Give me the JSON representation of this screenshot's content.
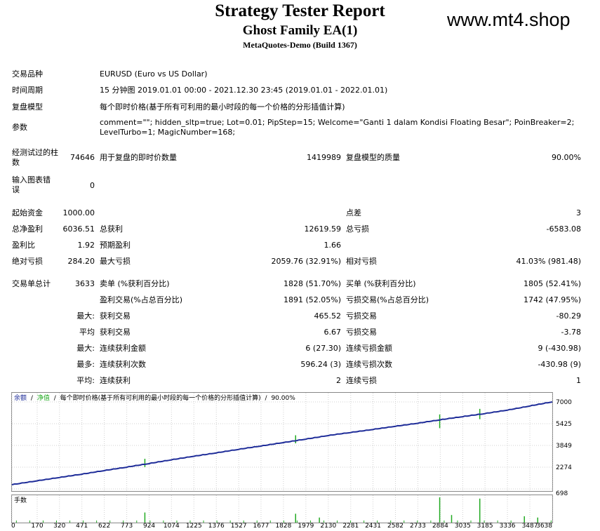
{
  "header": {
    "title": "Strategy Tester Report",
    "subtitle": "Ghost Family EA(1)",
    "build": "MetaQuotes-Demo (Build 1367)",
    "watermark": "www.mt4.shop"
  },
  "info": {
    "symbol_label": "交易品种",
    "symbol_value": "EURUSD (Euro vs US Dollar)",
    "period_label": "时间周期",
    "period_value": "15 分钟图 2019.01.01 00:00 - 2021.12.30 23:45 (2019.01.01 - 2022.01.01)",
    "model_label": "复盘模型",
    "model_value": "每个即时价格(基于所有可利用的最小时段的每一个价格的分形插值计算)",
    "params_label": "参数",
    "params_value": "comment=\"\"; hidden_sltp=true; Lot=0.01; PipStep=15; Welcome=\"Ganti 1 dalam Kondisi Floating Besar\"; PoinBreaker=2; LevelTurbo=1; MagicNumber=168;"
  },
  "stats": {
    "bars_label": "经测试过的柱数",
    "bars_value": "74646",
    "ticks_label": "用于复盘的即时价数量",
    "ticks_value": "1419989",
    "quality_label": "复盘模型的质量",
    "quality_value": "90.00%",
    "errors_label": "输入图表错误",
    "errors_value": "0",
    "deposit_label": "起始资金",
    "deposit_value": "1000.00",
    "spread_label": "点差",
    "spread_value": "3",
    "netprofit_label": "总净盈利",
    "netprofit_value": "6036.51",
    "grossprofit_label": "总获利",
    "grossprofit_value": "12619.59",
    "grossloss_label": "总亏损",
    "grossloss_value": "-6583.08",
    "pf_label": "盈利比",
    "pf_value": "1.92",
    "payoff_label": "预期盈利",
    "payoff_value": "1.66",
    "absdd_label": "绝对亏损",
    "absdd_value": "284.20",
    "maxdd_label": "最大亏损",
    "maxdd_value": "2059.76 (32.91%)",
    "reldd_label": "相对亏损",
    "reldd_value": "41.03% (981.48)",
    "trades_label": "交易单总计",
    "trades_value": "3633",
    "short_label": "卖单 (%获利百分比)",
    "short_value": "1828 (51.70%)",
    "long_label": "买单 (%获利百分比)",
    "long_value": "1805 (52.41%)",
    "profittrades_label": "盈利交易(%占总百分比)",
    "profittrades_value": "1891 (52.05%)",
    "losstrades_label": "亏损交易(%占总百分比)",
    "losstrades_value": "1742 (47.95%)",
    "max1_label": "最大:",
    "max1a_label": "获利交易",
    "max1a_value": "465.52",
    "max1b_label": "亏损交易",
    "max1b_value": "-80.29",
    "avg1_label": "平均",
    "avg1a_label": "获利交易",
    "avg1a_value": "6.67",
    "avg1b_label": "亏损交易",
    "avg1b_value": "-3.78",
    "max2_label": "最大:",
    "max2a_label": "连续获利金额",
    "max2a_value": "6 (27.30)",
    "max2b_label": "连续亏损金额",
    "max2b_value": "9 (-430.98)",
    "max3_label": "最多:",
    "max3a_label": "连续获利次数",
    "max3a_value": "596.24 (3)",
    "max3b_label": "连续亏损次数",
    "max3b_value": "-430.98 (9)",
    "avg2_label": "平均:",
    "avg2a_label": "连续获利",
    "avg2a_value": "2",
    "avg2b_label": "连续亏损",
    "avg2b_value": "1"
  },
  "chart_data": {
    "type": "line",
    "legend": {
      "balance": "余额",
      "sep": "/",
      "equity": "净值",
      "model": "每个即时价格(基于所有可利用的最小时段的每一个价格的分形插值计算)",
      "quality": "90.00%"
    },
    "volume_label": "手数",
    "colors": {
      "balance": "#1f2d99",
      "equity": "#22aa22",
      "grid": "#d0d0d0",
      "volume": "#22aa22"
    },
    "ylim": [
      698,
      7000
    ],
    "yticks": [
      7000,
      5425,
      3849,
      2274,
      698
    ],
    "xlim": [
      0,
      3638
    ],
    "xticks": [
      0,
      170,
      320,
      471,
      622,
      773,
      924,
      1074,
      1225,
      1376,
      1527,
      1677,
      1828,
      1979,
      2130,
      2281,
      2431,
      2582,
      2733,
      2884,
      3035,
      3185,
      3336,
      3487,
      3638
    ],
    "series": [
      {
        "name": "余额",
        "x": [
          0,
          170,
          320,
          471,
          622,
          773,
          924,
          1074,
          1225,
          1376,
          1527,
          1677,
          1828,
          1979,
          2130,
          2281,
          2431,
          2582,
          2733,
          2884,
          3035,
          3185,
          3336,
          3487,
          3638
        ],
        "values": [
          1000,
          1280,
          1520,
          1760,
          2020,
          2270,
          2530,
          2800,
          3060,
          3300,
          3560,
          3800,
          4050,
          4300,
          4560,
          4780,
          5000,
          5230,
          5450,
          5700,
          5930,
          6150,
          6400,
          6700,
          7000
        ]
      }
    ],
    "equity_dips": [
      {
        "x": 895,
        "value": 2280
      },
      {
        "x": 1910,
        "value": 4000
      },
      {
        "x": 2880,
        "value": 5100
      },
      {
        "x": 3150,
        "value": 5750
      }
    ],
    "volume_spikes": [
      {
        "x": 895,
        "value": 0.4
      },
      {
        "x": 1910,
        "value": 0.35
      },
      {
        "x": 2070,
        "value": 0.2
      },
      {
        "x": 2880,
        "value": 1.0
      },
      {
        "x": 2960,
        "value": 0.3
      },
      {
        "x": 3150,
        "value": 0.95
      },
      {
        "x": 3450,
        "value": 0.25
      },
      {
        "x": 3540,
        "value": 0.2
      }
    ]
  }
}
